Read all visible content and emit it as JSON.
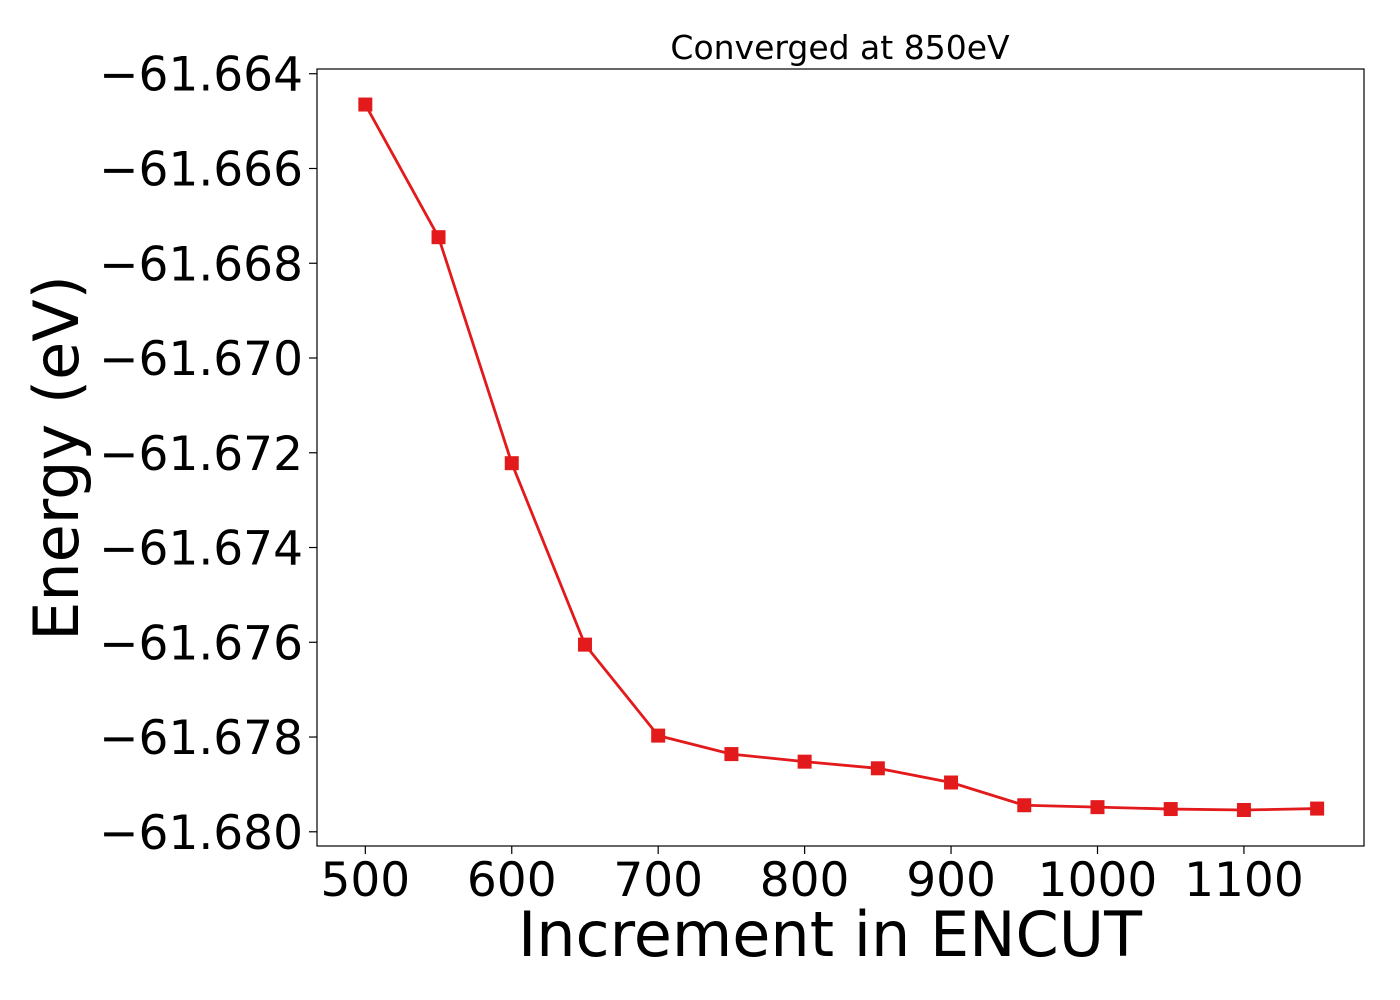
{
  "chart_data": {
    "type": "line",
    "title": "Converged at 850eV",
    "xlabel": "Increment in ENCUT",
    "ylabel": "Energy (eV)",
    "xlim": [
      467,
      1182
    ],
    "ylim": [
      -61.6803,
      -61.6639
    ],
    "xticks": [
      500,
      600,
      700,
      800,
      900,
      1000,
      1100
    ],
    "xtick_labels": [
      "500",
      "600",
      "700",
      "800",
      "900",
      "1000",
      "1100"
    ],
    "yticks": [
      -61.664,
      -61.666,
      -61.668,
      -61.67,
      -61.672,
      -61.674,
      -61.676,
      -61.678,
      -61.68
    ],
    "ytick_labels": [
      "−61.664",
      "−61.666",
      "−61.668",
      "−61.670",
      "−61.672",
      "−61.674",
      "−61.676",
      "−61.678",
      "−61.680"
    ],
    "grid": false,
    "series": [
      {
        "color": "#e31a1c",
        "marker": "square",
        "x": [
          500,
          550,
          600,
          650,
          700,
          750,
          800,
          850,
          900,
          950,
          1000,
          1050,
          1100,
          1150
        ],
        "y": [
          -61.66465,
          -61.66745,
          -61.67222,
          -61.67605,
          -61.67797,
          -61.67836,
          -61.67852,
          -61.67866,
          -61.67896,
          -61.67944,
          -61.67948,
          -61.67952,
          -61.67954,
          -61.67951
        ]
      }
    ]
  }
}
